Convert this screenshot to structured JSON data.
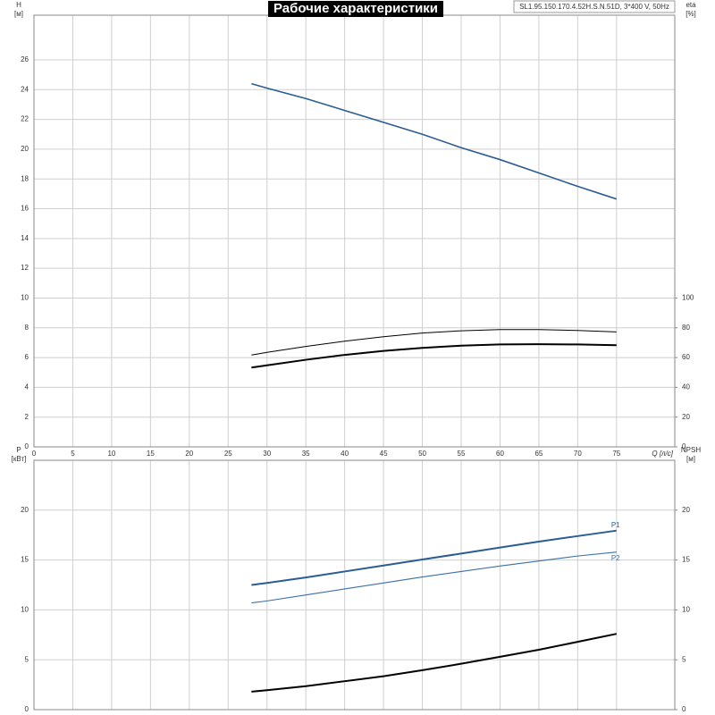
{
  "chart_data": [
    {
      "type": "line",
      "title": "Рабочие характеристики",
      "subtitle": "SL1.95.150.170.4.52H.S.N.51D, 3*400 V, 50Hz",
      "ylabel": "H",
      "ylabel_unit": "[м]",
      "y2label": "eta",
      "y2label_unit": "[%]",
      "xlabel": "Q [л/с]",
      "x": [
        28,
        30,
        35,
        40,
        45,
        50,
        55,
        60,
        65,
        70,
        75
      ],
      "xlim": [
        0,
        82.5
      ],
      "xticks": [
        0,
        5,
        10,
        15,
        20,
        25,
        30,
        35,
        40,
        45,
        50,
        55,
        60,
        65,
        70,
        75
      ],
      "ylim": [
        0,
        29
      ],
      "yticks": [
        0,
        2,
        4,
        6,
        8,
        10,
        12,
        14,
        16,
        18,
        20,
        22,
        24,
        26
      ],
      "y2lim": [
        0,
        290
      ],
      "y2ticks": [
        0,
        20,
        40,
        60,
        80,
        100
      ],
      "grid": true,
      "series": [
        {
          "color": "#2a5d94",
          "width": 1.6,
          "values": [
            24.4,
            24.1,
            23.4,
            22.6,
            21.8,
            21.0,
            20.1,
            19.3,
            18.4,
            17.5,
            16.65
          ]
        },
        {
          "color": "#000000",
          "width": 1,
          "axis": "y2",
          "values": [
            61.7,
            63.5,
            67.5,
            71,
            74,
            76.5,
            78,
            78.8,
            78.8,
            78.2,
            77.2
          ]
        },
        {
          "color": "#000000",
          "width": 2,
          "axis": "y2",
          "values": [
            53.3,
            54.8,
            58.5,
            61.8,
            64.5,
            66.5,
            68,
            68.8,
            69,
            68.8,
            68.3
          ]
        }
      ]
    },
    {
      "type": "line",
      "ylabel": "P",
      "ylabel_unit": "[кВт]",
      "y2label": "NPSH",
      "y2label_unit": "[м]",
      "x": [
        28,
        30,
        35,
        40,
        45,
        50,
        55,
        60,
        65,
        70,
        75
      ],
      "xlim": [
        0,
        82.5
      ],
      "xticks": [
        0,
        5,
        10,
        15,
        20,
        25,
        30,
        35,
        40,
        45,
        50,
        55,
        60,
        65,
        70,
        75
      ],
      "ylim": [
        0,
        25
      ],
      "yticks": [
        0,
        5,
        10,
        15,
        20
      ],
      "y2lim": [
        0,
        25
      ],
      "y2ticks": [
        0,
        5,
        10,
        15,
        20
      ],
      "grid": true,
      "series": [
        {
          "name": "P1",
          "color": "#2a5d94",
          "width": 2,
          "values": [
            12.5,
            12.7,
            13.25,
            13.85,
            14.45,
            15.05,
            15.65,
            16.25,
            16.85,
            17.4,
            17.95
          ]
        },
        {
          "name": "P2",
          "color": "#3a70aa",
          "width": 1.1,
          "values": [
            10.7,
            10.9,
            11.5,
            12.1,
            12.7,
            13.3,
            13.85,
            14.4,
            14.9,
            15.4,
            15.8
          ]
        },
        {
          "color": "#000000",
          "width": 2,
          "axis": "y2",
          "values": [
            1.8,
            1.95,
            2.35,
            2.85,
            3.35,
            3.95,
            4.6,
            5.3,
            6.0,
            6.8,
            7.6
          ]
        }
      ]
    }
  ]
}
